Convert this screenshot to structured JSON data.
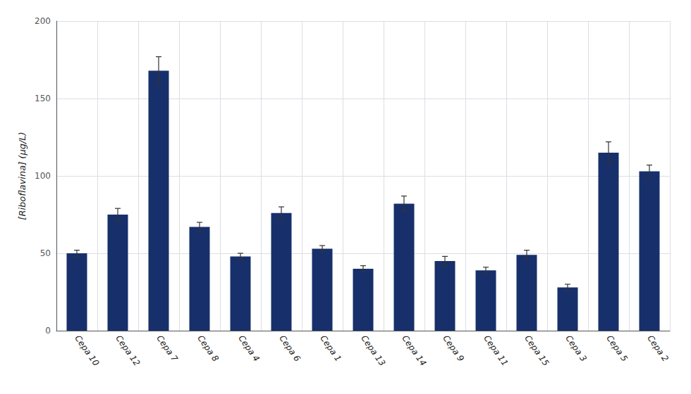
{
  "chart_data": {
    "type": "bar",
    "categories": [
      "Cepa 10",
      "Cepa 12",
      "Cepa 7",
      "Cepa 8",
      "Cepa 4",
      "Cepa 6",
      "Cepa 1",
      "Cepa 13",
      "Cepa 14",
      "Cepa 9",
      "Cepa 11",
      "Cepa 15",
      "Cepa 3",
      "Cepa 5",
      "Cepa 2"
    ],
    "values": [
      50,
      75,
      168,
      67,
      48,
      76,
      53,
      40,
      82,
      45,
      39,
      49,
      28,
      115,
      103
    ],
    "errors": [
      2,
      4,
      9,
      3,
      2,
      4,
      2,
      2,
      5,
      3,
      2,
      3,
      2,
      7,
      4
    ],
    "color": "#17306b",
    "ylabel": "[Riboflavina] (µg/L)",
    "ylim": [
      0,
      200
    ],
    "yticks": [
      0,
      50,
      100,
      150,
      200
    ],
    "grid": true
  }
}
